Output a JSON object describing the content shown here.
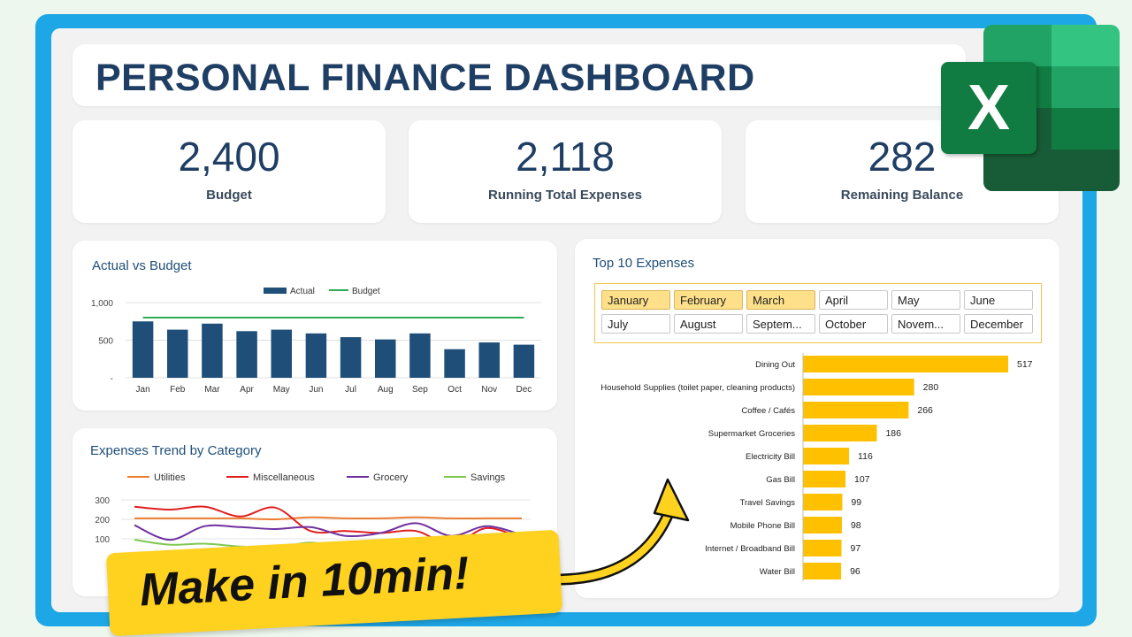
{
  "title": "PERSONAL FINANCE DASHBOARD",
  "kpis": [
    {
      "value": "2,400",
      "label": "Budget"
    },
    {
      "value": "2,118",
      "label": "Running Total Expenses"
    },
    {
      "value": "282",
      "label": "Remaining Balance"
    }
  ],
  "colors": {
    "navy": "#1f4e79",
    "green": "#2eaa56",
    "yellow": "#ffc000",
    "accent_blue": "#1ea7e6"
  },
  "actual_vs_budget": {
    "title": "Actual vs Budget",
    "legend": [
      "Actual",
      "Budget"
    ],
    "ytick_labels": [
      "1,000",
      "500",
      "-"
    ]
  },
  "trend": {
    "title": "Expenses Trend by Category",
    "legend": [
      "Utilities",
      "Miscellaneous",
      "Grocery",
      "Savings"
    ],
    "ytick_labels": [
      "300",
      "200",
      "100",
      "-"
    ]
  },
  "top10": {
    "title": "Top 10 Expenses",
    "months": [
      "January",
      "February",
      "March",
      "April",
      "May",
      "June",
      "July",
      "August",
      "Septem...",
      "October",
      "Novem...",
      "December"
    ],
    "selected_months": [
      "January",
      "February",
      "March"
    ]
  },
  "chart_data": [
    {
      "type": "bar",
      "title": "Actual vs Budget",
      "categories": [
        "Jan",
        "Feb",
        "Mar",
        "Apr",
        "May",
        "Jun",
        "Jul",
        "Aug",
        "Sep",
        "Oct",
        "Nov",
        "Dec"
      ],
      "series": [
        {
          "name": "Actual",
          "type": "bar",
          "values": [
            750,
            640,
            720,
            620,
            640,
            590,
            540,
            510,
            590,
            380,
            470,
            440
          ]
        },
        {
          "name": "Budget",
          "type": "line",
          "values": [
            800,
            800,
            800,
            800,
            800,
            800,
            800,
            800,
            800,
            800,
            800,
            800
          ]
        }
      ],
      "ylim": [
        0,
        1000
      ],
      "legend": "top-center",
      "colors": [
        "#1f4e79",
        "#2eaa56"
      ]
    },
    {
      "type": "line",
      "title": "Expenses Trend by Category",
      "x_count": 12,
      "series": [
        {
          "name": "Utilities",
          "values": [
            205,
            205,
            205,
            205,
            200,
            210,
            205,
            205,
            210,
            205,
            205,
            205
          ]
        },
        {
          "name": "Miscellaneous",
          "values": [
            265,
            250,
            265,
            215,
            260,
            140,
            140,
            130,
            140,
            70,
            155,
            100
          ]
        },
        {
          "name": "Grocery",
          "values": [
            170,
            95,
            165,
            160,
            150,
            160,
            115,
            130,
            180,
            115,
            165,
            120
          ]
        },
        {
          "name": "Savings",
          "values": [
            95,
            70,
            75,
            60,
            55,
            80,
            55,
            60,
            80,
            65,
            55,
            60
          ]
        }
      ],
      "ylim": [
        0,
        300
      ],
      "legend": "top-center",
      "colors": [
        "#ed7d31",
        "#e02020",
        "#7030a0",
        "#7ec850"
      ]
    },
    {
      "type": "bar",
      "orientation": "horizontal",
      "title": "Top 10 Expenses",
      "categories": [
        "Dining Out",
        "Household Supplies (toilet paper, cleaning products)",
        "Coffee / Cafés",
        "Supermarket Groceries",
        "Electricity Bill",
        "Gas Bill",
        "Travel Savings",
        "Mobile Phone Bill",
        "Internet / Broadband Bill",
        "Water Bill"
      ],
      "values": [
        517,
        280,
        266,
        186,
        116,
        107,
        99,
        98,
        97,
        96
      ],
      "colors": [
        "#ffc000"
      ]
    }
  ],
  "cta": "Make in 10min!",
  "excel_logo_letter": "X"
}
